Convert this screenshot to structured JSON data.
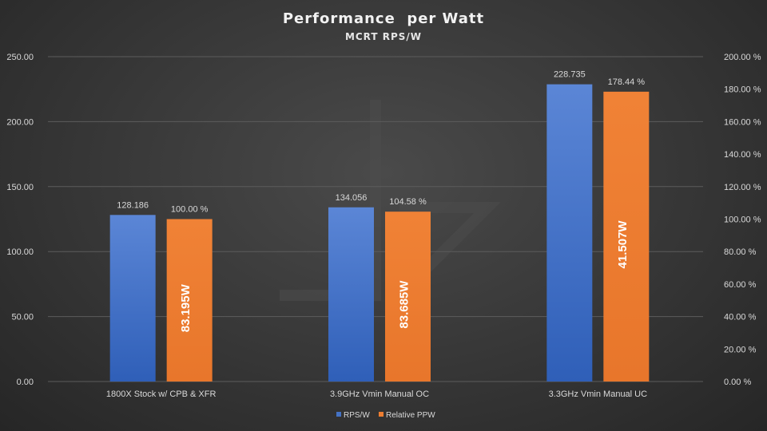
{
  "chart_data": {
    "type": "bar",
    "title": "Performance  per Watt",
    "subtitle": "MCRT RPS/W",
    "categories": [
      "1800X Stock w/ CPB & XFR",
      "3.9GHz Vmin Manual OC",
      "3.3GHz Vmin Manual UC"
    ],
    "series": [
      {
        "name": "RPS/W",
        "axis": "left",
        "color": "#4472c4",
        "values": [
          128.186,
          134.056,
          228.735
        ],
        "value_labels": [
          "128.186",
          "134.056",
          "228.735"
        ]
      },
      {
        "name": "Relative PPW",
        "axis": "right",
        "color": "#ed7d31",
        "values": [
          100.0,
          104.58,
          178.44
        ],
        "value_labels": [
          "100.00 %",
          "104.58 %",
          "178.44 %"
        ],
        "inner_labels": [
          "83.195W",
          "83.685W",
          "41.507W"
        ]
      }
    ],
    "y_left": {
      "ylim": [
        0,
        250
      ],
      "ticks": [
        "0.00",
        "50.00",
        "100.00",
        "150.00",
        "200.00",
        "250.00"
      ]
    },
    "y_right": {
      "ylim": [
        0,
        200
      ],
      "ticks": [
        "0.00 %",
        "20.00 %",
        "40.00 %",
        "60.00 %",
        "80.00 %",
        "100.00 %",
        "120.00 %",
        "140.00 %",
        "160.00 %",
        "180.00 %",
        "200.00 %"
      ]
    },
    "grid": true,
    "legend_position": "bottom"
  }
}
